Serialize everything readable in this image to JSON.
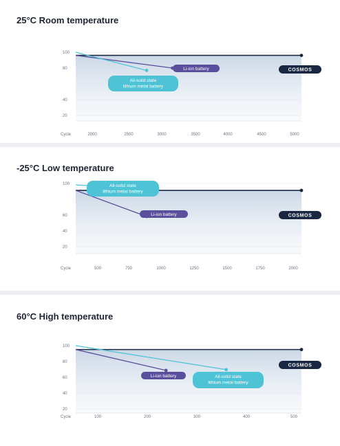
{
  "chart_data": [
    {
      "type": "line",
      "title": "25°C Room temperature",
      "xlabel": "Cycle",
      "x_ticks": [
        "2000",
        "2500",
        "3000",
        "3500",
        "4000",
        "4500",
        "5000"
      ],
      "xlim": [
        1500,
        5000
      ],
      "y_ticks": [
        "100",
        "80",
        "60",
        "40",
        "20"
      ],
      "y_ticks_shown": [
        "100",
        "80",
        "40",
        "20"
      ],
      "ylim": [
        0,
        100
      ],
      "series": [
        {
          "name": "COSMOS",
          "color": "#1a2742",
          "points": [
            [
              1500,
              96
            ],
            [
              5000,
              96
            ]
          ]
        },
        {
          "name": "Li-ion battery",
          "color": "#5a4f9c",
          "points": [
            [
              1500,
              96
            ],
            [
              3000,
              80
            ]
          ]
        },
        {
          "name_lines": [
            "All-solid state",
            "lithium metal battery"
          ],
          "color": "#4fc3d6",
          "points": [
            [
              1500,
              100
            ],
            [
              2600,
              77
            ]
          ]
        }
      ]
    },
    {
      "type": "line",
      "title": "-25°C Low temperature",
      "xlabel": "Cycle",
      "x_ticks": [
        "500",
        "750",
        "1000",
        "1250",
        "1500",
        "1750",
        "2000"
      ],
      "xlim": [
        250,
        2000
      ],
      "y_ticks": [
        "100",
        "80",
        "60",
        "40",
        "20"
      ],
      "y_ticks_shown": [
        "100",
        "60",
        "40",
        "20"
      ],
      "ylim": [
        0,
        100
      ],
      "series": [
        {
          "name": "COSMOS",
          "color": "#1a2742",
          "points": [
            [
              250,
              93
            ],
            [
              2000,
              93
            ]
          ]
        },
        {
          "name": "Li-ion battery",
          "color": "#5a4f9c",
          "points": [
            [
              250,
              93
            ],
            [
              800,
              60
            ]
          ]
        },
        {
          "name_lines": [
            "All-solid state",
            "lithium metal battery"
          ],
          "color": "#4fc3d6",
          "points": [
            [
              250,
              100
            ],
            [
              750,
              95
            ]
          ]
        }
      ]
    },
    {
      "type": "line",
      "title": "60°C High temperature",
      "xlabel": "Cycle",
      "x_ticks": [
        "100",
        "200",
        "300",
        "400",
        "500"
      ],
      "xlim": [
        50,
        500
      ],
      "y_ticks": [
        "100",
        "80",
        "60",
        "40",
        "20"
      ],
      "y_ticks_shown": [
        "100",
        "80",
        "60",
        "40",
        "20"
      ],
      "ylim": [
        0,
        100
      ],
      "series": [
        {
          "name": "COSMOS",
          "color": "#1a2742",
          "points": [
            [
              50,
              95
            ],
            [
              500,
              95
            ]
          ]
        },
        {
          "name": "Li-ion battery",
          "color": "#5a4f9c",
          "points": [
            [
              50,
              95
            ],
            [
              230,
              68
            ]
          ]
        },
        {
          "name_lines": [
            "All-solid state",
            "lithium metal battery"
          ],
          "color": "#4fc3d6",
          "points": [
            [
              50,
              100
            ],
            [
              350,
              69
            ]
          ]
        }
      ]
    }
  ]
}
